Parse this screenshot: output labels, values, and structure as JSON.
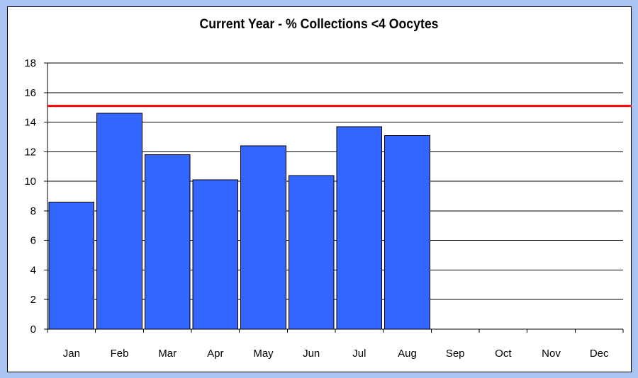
{
  "chart_data": {
    "type": "bar",
    "title": "Current Year - % Collections <4 Oocytes",
    "xlabel": "",
    "ylabel": "",
    "categories": [
      "Jan",
      "Feb",
      "Mar",
      "Apr",
      "May",
      "Jun",
      "Jul",
      "Aug",
      "Sep",
      "Oct",
      "Nov",
      "Dec"
    ],
    "series": [
      {
        "values": [
          8.6,
          14.6,
          11.8,
          10.1,
          12.4,
          10.4,
          13.7,
          13.1,
          null,
          null,
          null,
          null
        ]
      }
    ],
    "reference_line": {
      "value": 15.1,
      "color": "#ff0000"
    },
    "ylim": [
      0,
      18
    ],
    "yticks": [
      0,
      2,
      4,
      6,
      8,
      10,
      12,
      14,
      16,
      18
    ],
    "grid": true,
    "legend": "none",
    "colors": {
      "bar": "#3366ff",
      "bar_outline": "#000000",
      "grid": "#000000",
      "background": "#a9c4f2",
      "panel": "#ffffff"
    }
  }
}
